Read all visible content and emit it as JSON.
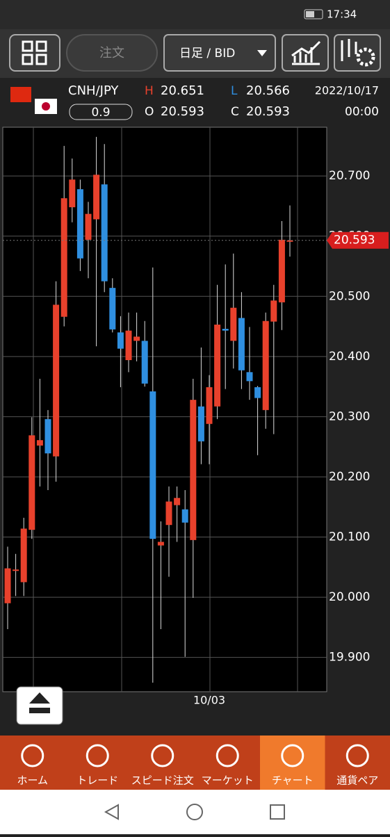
{
  "status_bar": {
    "time": "17:34"
  },
  "toolbar": {
    "order_button": "注文",
    "timeframe": "日足 / BID"
  },
  "quote": {
    "symbol": "CNH/JPY",
    "spread": 0.9,
    "high_label": "H",
    "high": 20.651,
    "low_label": "L",
    "low": 20.566,
    "open_label": "O",
    "open": 20.593,
    "close_label": "C",
    "close": 20.593,
    "date": "2022/10/17",
    "time": "00:00"
  },
  "chart_data": {
    "type": "candlestick",
    "categories": [
      null,
      null,
      null,
      null,
      null,
      null,
      null,
      null,
      null,
      null,
      null,
      null,
      null,
      null,
      null,
      null,
      null,
      null,
      null,
      null,
      null,
      null,
      null,
      null,
      null,
      "10/03",
      null,
      null,
      null,
      null,
      null,
      null,
      null,
      null,
      null,
      null
    ],
    "open": [
      19.99,
      20.045,
      20.025,
      20.112,
      20.252,
      20.296,
      20.234,
      20.466,
      20.648,
      20.678,
      20.594,
      20.628,
      20.686,
      20.514,
      20.44,
      20.394,
      20.426,
      20.426,
      20.342,
      20.086,
      20.12,
      20.153,
      20.146,
      20.095,
      20.317,
      20.288,
      20.317,
      20.446,
      20.426,
      20.464,
      20.374,
      20.349,
      20.311,
      20.458,
      20.49,
      20.593
    ],
    "high": [
      20.084,
      20.072,
      20.132,
      20.299,
      20.363,
      20.311,
      20.525,
      20.75,
      20.729,
      20.694,
      20.657,
      20.765,
      20.753,
      20.53,
      20.467,
      20.473,
      20.473,
      20.459,
      20.548,
      20.126,
      20.184,
      20.184,
      20.178,
      20.363,
      20.415,
      20.369,
      20.519,
      20.553,
      20.571,
      20.507,
      20.449,
      20.351,
      20.473,
      20.519,
      20.625,
      20.651
    ],
    "low": [
      19.947,
      20.002,
      20.002,
      20.097,
      20.184,
      20.178,
      20.192,
      20.45,
      20.623,
      20.542,
      20.53,
      20.417,
      20.507,
      20.44,
      20.349,
      20.374,
      20.392,
      20.35,
      19.858,
      19.947,
      20.034,
      20.092,
      19.901,
      19.999,
      20.221,
      20.221,
      20.296,
      20.346,
      20.38,
      20.346,
      20.328,
      20.236,
      20.28,
      20.271,
      20.444,
      20.566
    ],
    "close": [
      20.048,
      20.046,
      20.114,
      20.269,
      20.261,
      20.239,
      20.486,
      20.663,
      20.694,
      20.563,
      20.637,
      20.702,
      20.525,
      20.445,
      20.413,
      20.443,
      20.433,
      20.355,
      20.097,
      20.092,
      20.159,
      20.165,
      20.124,
      20.328,
      20.259,
      20.349,
      20.453,
      20.443,
      20.481,
      20.377,
      20.359,
      20.331,
      20.459,
      20.493,
      20.594,
      20.593
    ],
    "up_color": "#e8412c",
    "down_color": "#2f8fe0",
    "ylim": [
      19.843,
      20.781
    ],
    "yticks": [
      {
        "value": 19.9,
        "label": "19.900"
      },
      {
        "value": 20.0,
        "label": "20.000"
      },
      {
        "value": 20.1,
        "label": "20.100"
      },
      {
        "value": 20.2,
        "label": "20.200"
      },
      {
        "value": 20.3,
        "label": "20.300"
      },
      {
        "value": 20.4,
        "label": "20.400"
      },
      {
        "value": 20.5,
        "label": "20.500"
      },
      {
        "value": 20.6,
        "label": "20.600"
      },
      {
        "value": 20.7,
        "label": "20.700"
      }
    ],
    "last_price": 20.593,
    "last_price_color": "#d81e1e",
    "grid": true
  },
  "bottom_nav": [
    "ホーム",
    "トレード",
    "スピード注文",
    "マーケット",
    "チャート",
    "通貨ペア"
  ]
}
